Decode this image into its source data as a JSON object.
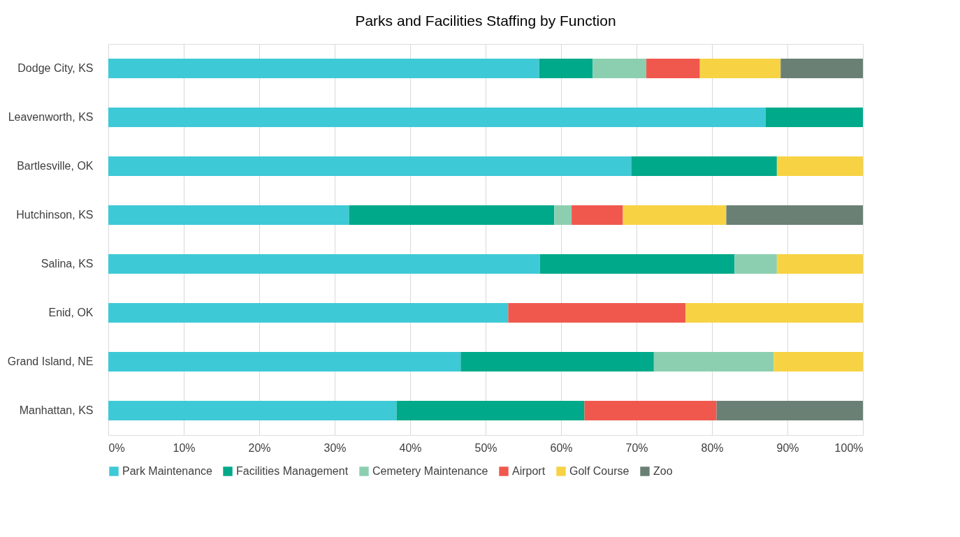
{
  "chart_data": {
    "type": "bar",
    "title": "Parks and Facilities Staffing by Function",
    "orientation": "horizontal",
    "stacked": true,
    "categories": [
      "Dodge City, KS",
      "Leavenworth, KS",
      "Bartlesville, OK",
      "Hutchinson, KS",
      "Salina, KS",
      "Enid, OK",
      "Grand Island, NE",
      "Manhattan, KS"
    ],
    "series": [
      {
        "name": "Park Maintenance",
        "color": "#3ec9d6",
        "values": [
          57.1,
          87.1,
          69.3,
          31.9,
          57.2,
          53.0,
          46.7,
          38.2
        ]
      },
      {
        "name": "Facilities Management",
        "color": "#00a98a",
        "values": [
          7.1,
          12.9,
          19.3,
          27.2,
          25.8,
          null,
          25.6,
          24.9
        ]
      },
      {
        "name": "Cemetery Maintenance",
        "color": "#8ccfb0",
        "values": [
          7.1,
          null,
          null,
          2.3,
          5.6,
          null,
          15.9,
          null
        ]
      },
      {
        "name": "Airport",
        "color": "#f0584e",
        "values": [
          7.1,
          null,
          null,
          6.8,
          null,
          23.5,
          null,
          17.5
        ]
      },
      {
        "name": "Golf Course",
        "color": "#f7d344",
        "values": [
          10.7,
          null,
          11.4,
          13.7,
          11.4,
          23.5,
          11.8,
          null
        ]
      },
      {
        "name": "Zoo",
        "color": "#6b8075",
        "values": [
          10.9,
          null,
          null,
          18.1,
          null,
          null,
          null,
          19.4
        ]
      }
    ],
    "xlim": [
      0,
      100
    ],
    "xticks": [
      {
        "value": 0,
        "label": "0%"
      },
      {
        "value": 10,
        "label": "10%"
      },
      {
        "value": 20,
        "label": "20%"
      },
      {
        "value": 30,
        "label": "30%"
      },
      {
        "value": 40,
        "label": "40%"
      },
      {
        "value": 50,
        "label": "50%"
      },
      {
        "value": 60,
        "label": "60%"
      },
      {
        "value": 70,
        "label": "70%"
      },
      {
        "value": 80,
        "label": "80%"
      },
      {
        "value": 90,
        "label": "90%"
      },
      {
        "value": 100,
        "label": "100%"
      }
    ],
    "grid": "x",
    "legend": "bottom"
  }
}
